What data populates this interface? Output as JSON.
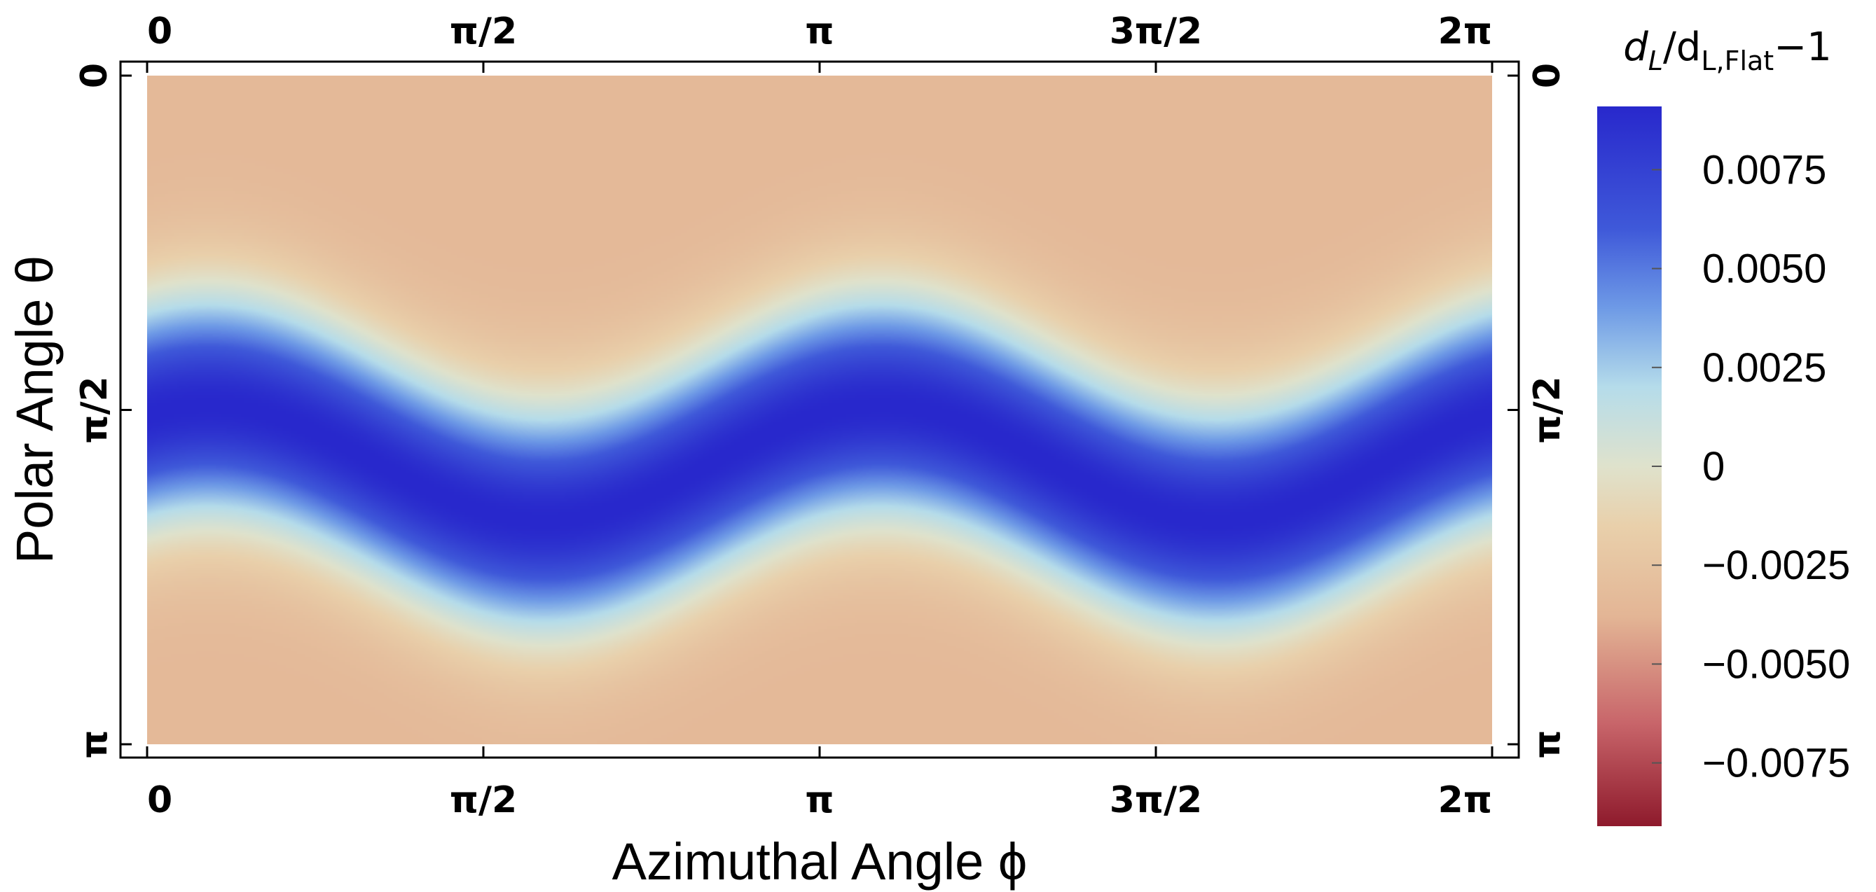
{
  "chart_data": {
    "type": "heatmap",
    "title": "",
    "xlabel": "Azimuthal Angle ϕ",
    "ylabel": "Polar Angle θ",
    "x_range": [
      0,
      6.283185307
    ],
    "y_range": [
      0,
      3.141592654
    ],
    "x_ticks": [
      {
        "value": 0,
        "label": "0"
      },
      {
        "value": 1.570796327,
        "label": "π/2"
      },
      {
        "value": 3.141592654,
        "label": "π"
      },
      {
        "value": 4.71238898,
        "label": "3π/2"
      },
      {
        "value": 6.283185307,
        "label": "2π"
      }
    ],
    "y_ticks": [
      {
        "value": 0,
        "label": "0"
      },
      {
        "value": 1.570796327,
        "label": "π/2"
      },
      {
        "value": 3.141592654,
        "label": "π"
      }
    ],
    "field": {
      "model": "gaussian band following a sinusoidal ridge",
      "ridge_center_theta": 1.82,
      "ridge_amplitude_theta": 0.27,
      "ridge_phase_rad": 1.0,
      "band_width_theta": 0.52,
      "peak_value": 0.0091,
      "background_value": -0.0035
    },
    "colorbar": {
      "title_main": "d",
      "title_sub1": "L",
      "title_mid": "/d",
      "title_sub2": "L,Flat",
      "title_tail": "−1",
      "range": [
        -0.0091,
        0.0091
      ],
      "ticks": [
        {
          "value": 0.0075,
          "label": "0.0075"
        },
        {
          "value": 0.005,
          "label": "0.0050"
        },
        {
          "value": 0.0025,
          "label": "0.0025"
        },
        {
          "value": 0,
          "label": "0"
        },
        {
          "value": -0.0025,
          "label": "−0.0025"
        },
        {
          "value": -0.005,
          "label": "−0.0050"
        },
        {
          "value": -0.0075,
          "label": "−0.0075"
        }
      ],
      "stops": [
        {
          "value": -0.0091,
          "color": "#8e1a2c"
        },
        {
          "value": -0.0065,
          "color": "#c8656a"
        },
        {
          "value": -0.0038,
          "color": "#e3b595"
        },
        {
          "value": -0.0015,
          "color": "#e9d0ab"
        },
        {
          "value": 0.0,
          "color": "#dfe2cc"
        },
        {
          "value": 0.002,
          "color": "#b5dcea"
        },
        {
          "value": 0.004,
          "color": "#6e9ae6"
        },
        {
          "value": 0.006,
          "color": "#3f59d9"
        },
        {
          "value": 0.0091,
          "color": "#2828cc"
        }
      ]
    }
  }
}
